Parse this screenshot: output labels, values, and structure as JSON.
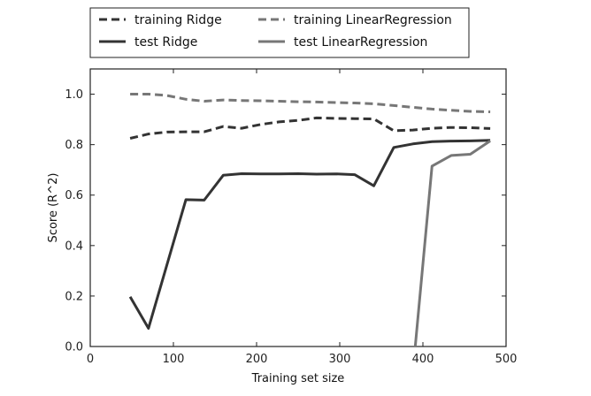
{
  "chart_data": {
    "type": "line",
    "xlabel": "Training set size",
    "ylabel": "Score (R^2)",
    "xlim": [
      0,
      500
    ],
    "ylim": [
      0,
      1.1
    ],
    "x_ticks": [
      "0",
      "100",
      "200",
      "300",
      "400",
      "500"
    ],
    "y_ticks": [
      "0.0",
      "0.2",
      "0.4",
      "0.6",
      "0.8",
      "1.0"
    ],
    "x_tick_values": [
      0,
      100,
      200,
      300,
      400,
      500
    ],
    "y_tick_values": [
      0,
      0.2,
      0.4,
      0.6,
      0.8,
      1.0
    ],
    "grid": false,
    "legend_position": "top",
    "series": [
      {
        "name": "training Ridge",
        "color": "#333333",
        "dash": true,
        "x": [
          48,
          70,
          92,
          115,
          137,
          160,
          182,
          205,
          227,
          250,
          272,
          295,
          318,
          341,
          365,
          388,
          411,
          434,
          457,
          481
        ],
        "y": [
          0.825,
          0.842,
          0.85,
          0.851,
          0.851,
          0.872,
          0.865,
          0.88,
          0.89,
          0.896,
          0.906,
          0.904,
          0.903,
          0.902,
          0.855,
          0.858,
          0.865,
          0.868,
          0.867,
          0.864
        ]
      },
      {
        "name": "training LinearRegression",
        "color": "#777777",
        "dash": true,
        "x": [
          48,
          70,
          92,
          115,
          137,
          160,
          182,
          205,
          227,
          250,
          272,
          295,
          318,
          341,
          365,
          388,
          411,
          434,
          457,
          481
        ],
        "y": [
          1.0,
          1.0,
          0.995,
          0.98,
          0.972,
          0.977,
          0.975,
          0.974,
          0.972,
          0.97,
          0.969,
          0.967,
          0.965,
          0.962,
          0.955,
          0.948,
          0.941,
          0.936,
          0.932,
          0.93
        ]
      },
      {
        "name": "test Ridge",
        "color": "#333333",
        "dash": false,
        "x": [
          48,
          70,
          115,
          137,
          160,
          182,
          205,
          227,
          250,
          272,
          295,
          318,
          341,
          365,
          388,
          411,
          434,
          457,
          481
        ],
        "y": [
          0.197,
          0.072,
          0.582,
          0.58,
          0.679,
          0.685,
          0.684,
          0.684,
          0.685,
          0.683,
          0.684,
          0.681,
          0.637,
          0.789,
          0.803,
          0.812,
          0.814,
          0.815,
          0.817
        ]
      },
      {
        "name": "test LinearRegression",
        "color": "#777777",
        "dash": false,
        "x": [
          388,
          411,
          434,
          457,
          481
        ],
        "y": [
          -0.1,
          0.715,
          0.757,
          0.762,
          0.815
        ]
      }
    ]
  }
}
